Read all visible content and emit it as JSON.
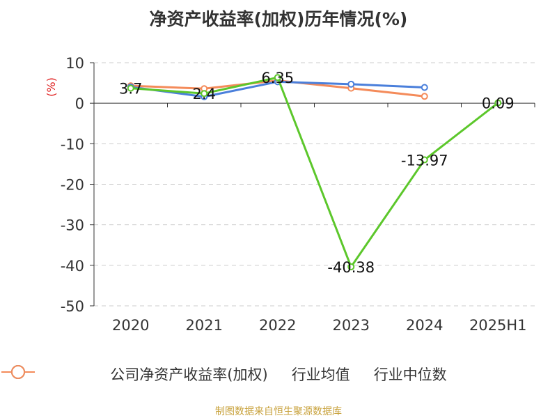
{
  "chart_data": {
    "type": "line",
    "title": "净资产收益率(加权)历年情况(%)",
    "ylabel": "(%)",
    "categories": [
      "2020",
      "2021",
      "2022",
      "2023",
      "2024",
      "2025H1"
    ],
    "ylim": [
      -50,
      10
    ],
    "yticks": [
      "10",
      "0",
      "-10",
      "-20",
      "-30",
      "-40",
      "-50"
    ],
    "grid": true,
    "legend_position": "bottom",
    "series": [
      {
        "name": "公司净资产收益率(加权)",
        "color": "#5cc72b",
        "values": [
          3.7,
          2.4,
          6.35,
          -40.38,
          -13.97,
          0.09
        ],
        "labels": [
          "3.7",
          "2.4",
          "6.35",
          "-40.38",
          "-13.97",
          "0.09"
        ]
      },
      {
        "name": "行业均值",
        "color": "#4a7fdb",
        "values": [
          4.0,
          1.6,
          5.3,
          4.7,
          3.9,
          null
        ]
      },
      {
        "name": "行业中位数",
        "color": "#f48b5a",
        "values": [
          4.3,
          3.6,
          5.6,
          3.7,
          1.7,
          null
        ]
      }
    ],
    "source": "制图数据来自恒生聚源数据库"
  }
}
